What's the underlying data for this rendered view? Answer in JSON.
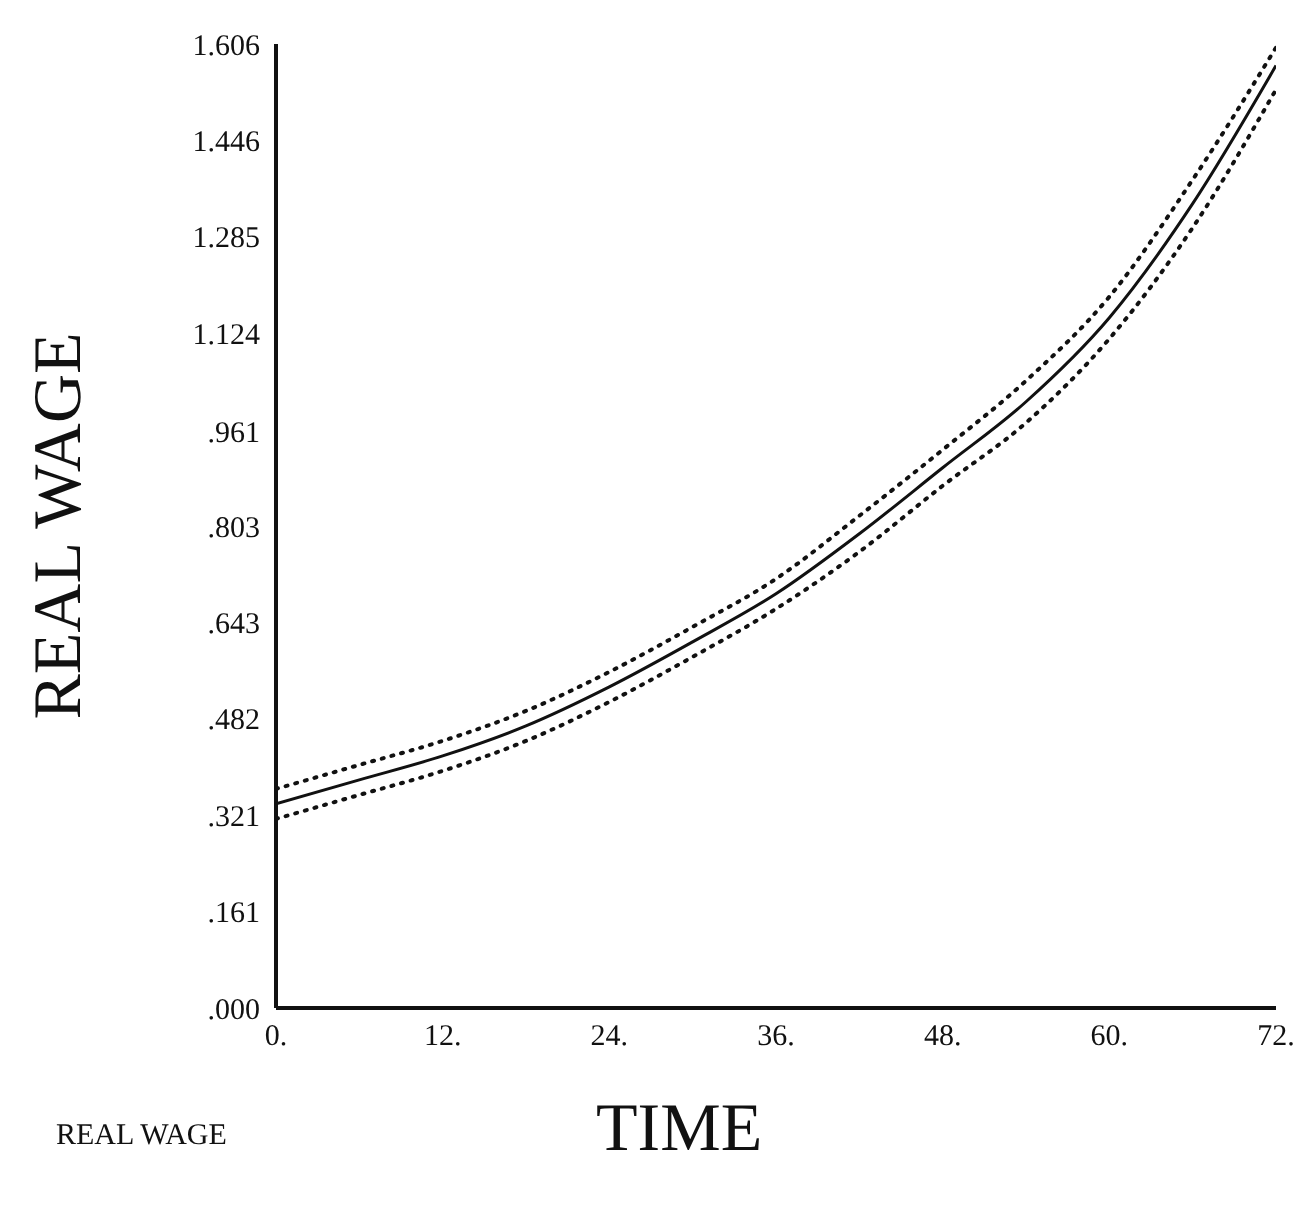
{
  "chart_data": {
    "type": "line",
    "xlabel": "TIME",
    "ylabel": "REAL WAGE",
    "annotations": [
      "REAL WAGE"
    ],
    "x": [
      0,
      6,
      12,
      18,
      24,
      30,
      36,
      42,
      48,
      54,
      60,
      66,
      72
    ],
    "series": [
      {
        "color": "#111111",
        "line_style": "solid",
        "values": [
          0.34,
          0.38,
          0.42,
          0.47,
          0.535,
          0.61,
          0.69,
          0.79,
          0.9,
          1.01,
          1.15,
          1.34,
          1.57
        ]
      },
      {
        "color": "#111111",
        "line_style": "dotted",
        "values": [
          0.315,
          0.355,
          0.395,
          0.445,
          0.51,
          0.585,
          0.665,
          0.76,
          0.87,
          0.975,
          1.115,
          1.3,
          1.53
        ]
      },
      {
        "color": "#111111",
        "line_style": "dotted",
        "values": [
          0.365,
          0.405,
          0.445,
          0.495,
          0.56,
          0.635,
          0.715,
          0.82,
          0.93,
          1.045,
          1.185,
          1.38,
          1.6
        ]
      }
    ],
    "xlim": [
      0,
      72
    ],
    "xticks": [
      {
        "value": 0,
        "label": "0."
      },
      {
        "value": 12,
        "label": "12."
      },
      {
        "value": 24,
        "label": "24."
      },
      {
        "value": 36,
        "label": "36."
      },
      {
        "value": 48,
        "label": "48."
      },
      {
        "value": 60,
        "label": "60."
      },
      {
        "value": 72,
        "label": "72."
      }
    ],
    "ylim": [
      0,
      1.606
    ],
    "yticks": [
      {
        "value": 0,
        "label": ".000"
      },
      {
        "value": 0.161,
        "label": ".161"
      },
      {
        "value": 0.321,
        "label": ".321"
      },
      {
        "value": 0.482,
        "label": ".482"
      },
      {
        "value": 0.643,
        "label": ".643"
      },
      {
        "value": 0.803,
        "label": ".803"
      },
      {
        "value": 0.961,
        "label": ".961"
      },
      1.124,
      1.285,
      1.446,
      1.606
    ],
    "grid": false,
    "legend": false,
    "marker": "none"
  }
}
